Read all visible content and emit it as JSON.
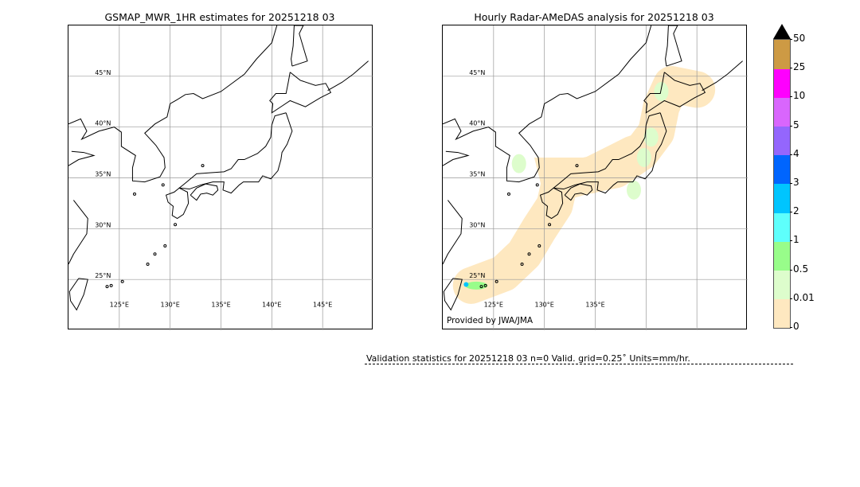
{
  "left_panel": {
    "title": "GSMAP_MWR_1HR estimates for 20251218 03",
    "lat_labels": [
      "45°N",
      "40°N",
      "35°N",
      "30°N",
      "25°N"
    ],
    "lon_labels": [
      "125°E",
      "130°E",
      "135°E",
      "140°E",
      "145°E"
    ]
  },
  "right_panel": {
    "title": "Hourly Radar-AMeDAS analysis for 20251218 03",
    "lat_labels": [
      "45°N",
      "40°N",
      "35°N",
      "30°N",
      "25°N"
    ],
    "lon_labels": [
      "125°E",
      "130°E",
      "135°E"
    ],
    "credit": "Provided by JWA/JMA"
  },
  "extent": {
    "lon": [
      120,
      150
    ],
    "lat": [
      20,
      50
    ]
  },
  "colorbar": {
    "ticks": [
      "0",
      "0.01",
      "0.5",
      "1",
      "2",
      "3",
      "4",
      "5",
      "10",
      "25",
      "50"
    ],
    "colors": [
      "#fee8c0",
      "#ddfdcc",
      "#98fd8a",
      "#5efffc",
      "#00c5fe",
      "#0065fe",
      "#9466fd",
      "#d966fd",
      "#fe00fe",
      "#cd9a44"
    ],
    "extend_color": "#000000"
  },
  "validation": {
    "text": "Validation statistics for 20251218 03  n=0 Valid. grid=0.25˚ Units=mm/hr."
  }
}
